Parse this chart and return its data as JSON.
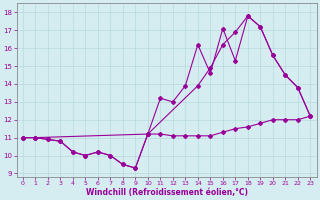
{
  "xlabel": "Windchill (Refroidissement éolien,°C)",
  "bg_color": "#d5edf0",
  "line_color": "#990099",
  "xlim": [
    -0.5,
    23.5
  ],
  "ylim": [
    8.8,
    18.5
  ],
  "xticks": [
    0,
    1,
    2,
    3,
    4,
    5,
    6,
    7,
    8,
    9,
    10,
    11,
    12,
    13,
    14,
    15,
    16,
    17,
    18,
    19,
    20,
    21,
    22,
    23
  ],
  "yticks": [
    9,
    10,
    11,
    12,
    13,
    14,
    15,
    16,
    17,
    18
  ],
  "line1_x": [
    0,
    1,
    2,
    3,
    4,
    5,
    6,
    7,
    8,
    9,
    10,
    11,
    12,
    13,
    14,
    15,
    16,
    17,
    18,
    19,
    20,
    21,
    22,
    23
  ],
  "line1_y": [
    11.0,
    11.0,
    10.9,
    10.8,
    10.2,
    10.0,
    10.2,
    10.0,
    9.5,
    9.3,
    11.2,
    11.2,
    11.1,
    11.1,
    11.1,
    11.1,
    11.3,
    11.5,
    11.6,
    11.8,
    12.0,
    12.0,
    12.0,
    12.2
  ],
  "line2_x": [
    0,
    1,
    2,
    3,
    4,
    5,
    6,
    7,
    8,
    9,
    10,
    11,
    12,
    13,
    14,
    15,
    16,
    17,
    18,
    19,
    20,
    21,
    22,
    23
  ],
  "line2_y": [
    11.0,
    11.0,
    10.9,
    10.8,
    10.2,
    10.0,
    10.2,
    10.0,
    9.5,
    9.3,
    11.2,
    13.2,
    13.0,
    13.9,
    16.2,
    14.6,
    17.1,
    15.3,
    17.8,
    17.2,
    15.6,
    14.5,
    13.8,
    12.2
  ],
  "line3_x": [
    0,
    1,
    10,
    14,
    15,
    16,
    17,
    18,
    19,
    20,
    21,
    22,
    23
  ],
  "line3_y": [
    11.0,
    11.0,
    11.2,
    13.9,
    14.9,
    16.2,
    16.9,
    17.8,
    17.2,
    15.6,
    14.5,
    13.8,
    12.2
  ]
}
